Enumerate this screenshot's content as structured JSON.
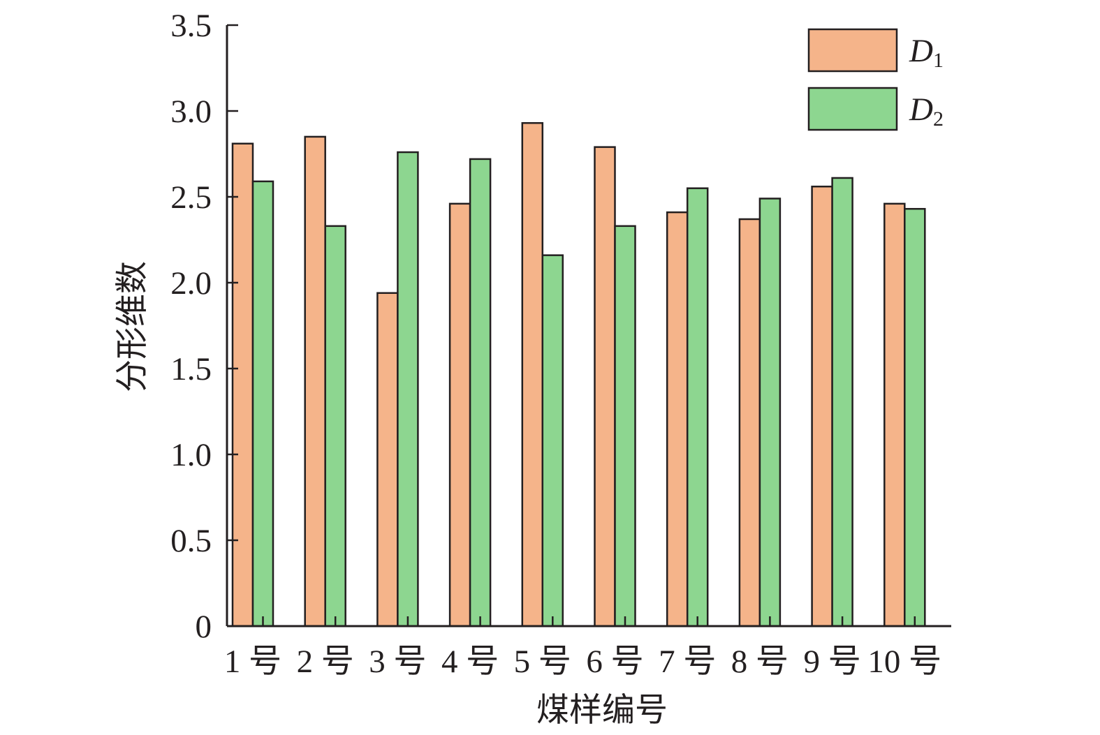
{
  "chart_data": {
    "type": "bar",
    "xlabel": "煤样编号",
    "ylabel": "分形维数",
    "ylim": [
      0,
      3.5
    ],
    "yticks": [
      "0",
      "0.5",
      "1.0",
      "1.5",
      "2.0",
      "2.5",
      "3.0",
      "3.5"
    ],
    "categories": [
      "1 号",
      "2 号",
      "3 号",
      "4 号",
      "5 号",
      "6 号",
      "7 号",
      "8 号",
      "9 号",
      "10 号"
    ],
    "series": [
      {
        "name": "D1",
        "name_main": "D",
        "name_sub": "1",
        "color": "#f5b48a",
        "values": [
          2.81,
          2.85,
          1.94,
          2.46,
          2.93,
          2.79,
          2.41,
          2.37,
          2.56,
          2.46
        ]
      },
      {
        "name": "D2",
        "name_main": "D",
        "name_sub": "2",
        "color": "#8dd690",
        "values": [
          2.59,
          2.33,
          2.76,
          2.72,
          2.16,
          2.33,
          2.55,
          2.49,
          2.61,
          2.43
        ]
      }
    ],
    "legend_position": "top-right",
    "grid": false
  }
}
